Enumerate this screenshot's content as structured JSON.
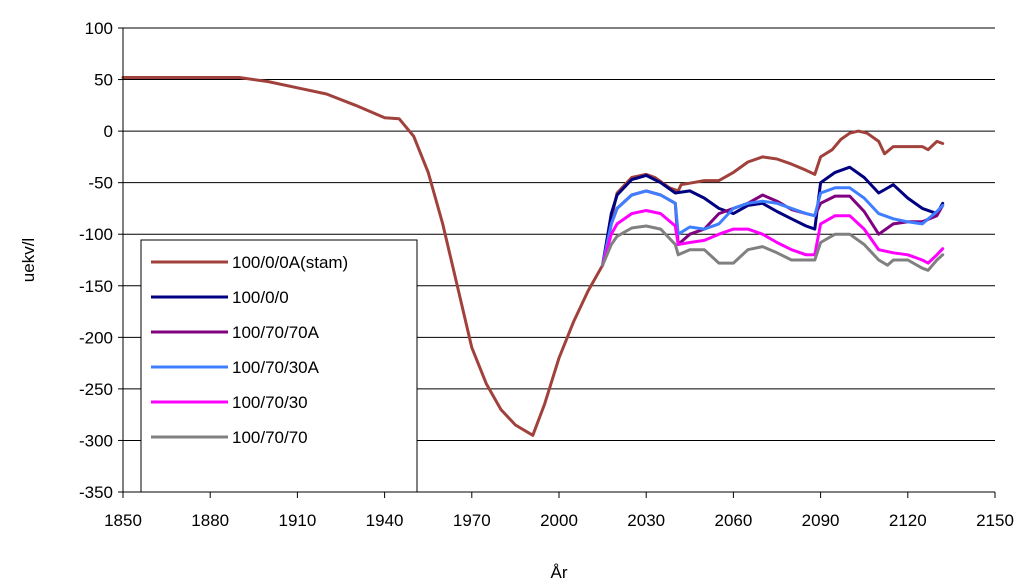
{
  "chart_data": {
    "type": "line",
    "title": "",
    "xlabel": "År",
    "ylabel": "uekv/l",
    "xlim": [
      1850,
      2150
    ],
    "ylim": [
      -350,
      100
    ],
    "x_ticks": [
      1850,
      1880,
      1910,
      1940,
      1970,
      2000,
      2030,
      2060,
      2090,
      2120,
      2150
    ],
    "y_ticks": [
      100,
      50,
      0,
      -50,
      -100,
      -150,
      -200,
      -250,
      -300,
      -350
    ],
    "grid": "horizontal",
    "legend": "bottom-left",
    "series": [
      {
        "name": "100/0/0A(stam)",
        "color": "#A0413B",
        "points": [
          [
            1850,
            52
          ],
          [
            1890,
            52
          ],
          [
            1900,
            48
          ],
          [
            1910,
            42
          ],
          [
            1920,
            36
          ],
          [
            1930,
            25
          ],
          [
            1940,
            13
          ],
          [
            1945,
            12
          ],
          [
            1950,
            -5
          ],
          [
            1955,
            -40
          ],
          [
            1960,
            -90
          ],
          [
            1965,
            -150
          ],
          [
            1970,
            -210
          ],
          [
            1975,
            -245
          ],
          [
            1980,
            -270
          ],
          [
            1985,
            -285
          ],
          [
            1991,
            -295
          ],
          [
            1995,
            -265
          ],
          [
            2000,
            -220
          ],
          [
            2005,
            -185
          ],
          [
            2010,
            -155
          ],
          [
            2015,
            -130
          ],
          [
            2018,
            -85
          ],
          [
            2020,
            -60
          ],
          [
            2025,
            -45
          ],
          [
            2030,
            -42
          ],
          [
            2033,
            -45
          ],
          [
            2038,
            -55
          ],
          [
            2041,
            -58
          ],
          [
            2042,
            -52
          ],
          [
            2046,
            -50
          ],
          [
            2050,
            -48
          ],
          [
            2055,
            -48
          ],
          [
            2060,
            -40
          ],
          [
            2065,
            -30
          ],
          [
            2070,
            -25
          ],
          [
            2075,
            -27
          ],
          [
            2080,
            -32
          ],
          [
            2085,
            -38
          ],
          [
            2088,
            -42
          ],
          [
            2090,
            -25
          ],
          [
            2094,
            -18
          ],
          [
            2097,
            -8
          ],
          [
            2100,
            -2
          ],
          [
            2103,
            0
          ],
          [
            2106,
            -2
          ],
          [
            2110,
            -10
          ],
          [
            2112,
            -22
          ],
          [
            2115,
            -15
          ],
          [
            2120,
            -15
          ],
          [
            2125,
            -15
          ],
          [
            2127,
            -18
          ],
          [
            2130,
            -10
          ],
          [
            2132,
            -12
          ]
        ]
      },
      {
        "name": "100/0/0",
        "color": "#000080",
        "points": [
          [
            2015,
            -130
          ],
          [
            2018,
            -80
          ],
          [
            2020,
            -62
          ],
          [
            2025,
            -47
          ],
          [
            2030,
            -43
          ],
          [
            2035,
            -50
          ],
          [
            2040,
            -60
          ],
          [
            2045,
            -58
          ],
          [
            2050,
            -65
          ],
          [
            2055,
            -75
          ],
          [
            2060,
            -80
          ],
          [
            2065,
            -72
          ],
          [
            2070,
            -70
          ],
          [
            2075,
            -78
          ],
          [
            2080,
            -85
          ],
          [
            2085,
            -92
          ],
          [
            2088,
            -95
          ],
          [
            2090,
            -50
          ],
          [
            2095,
            -40
          ],
          [
            2100,
            -35
          ],
          [
            2105,
            -45
          ],
          [
            2110,
            -60
          ],
          [
            2115,
            -52
          ],
          [
            2120,
            -65
          ],
          [
            2125,
            -75
          ],
          [
            2130,
            -80
          ],
          [
            2132,
            -70
          ]
        ]
      },
      {
        "name": "100/70/70A",
        "color": "#800080",
        "points": [
          [
            2015,
            -130
          ],
          [
            2018,
            -90
          ],
          [
            2020,
            -75
          ],
          [
            2025,
            -62
          ],
          [
            2030,
            -58
          ],
          [
            2035,
            -62
          ],
          [
            2040,
            -70
          ],
          [
            2041,
            -110
          ],
          [
            2045,
            -100
          ],
          [
            2050,
            -95
          ],
          [
            2055,
            -80
          ],
          [
            2060,
            -75
          ],
          [
            2065,
            -70
          ],
          [
            2070,
            -62
          ],
          [
            2075,
            -68
          ],
          [
            2080,
            -76
          ],
          [
            2085,
            -80
          ],
          [
            2088,
            -82
          ],
          [
            2090,
            -70
          ],
          [
            2095,
            -63
          ],
          [
            2100,
            -63
          ],
          [
            2105,
            -78
          ],
          [
            2110,
            -100
          ],
          [
            2115,
            -90
          ],
          [
            2120,
            -88
          ],
          [
            2125,
            -88
          ],
          [
            2130,
            -82
          ],
          [
            2132,
            -72
          ]
        ]
      },
      {
        "name": "100/70/30A",
        "color": "#3F7FFF",
        "points": [
          [
            2015,
            -130
          ],
          [
            2018,
            -90
          ],
          [
            2020,
            -75
          ],
          [
            2025,
            -62
          ],
          [
            2030,
            -58
          ],
          [
            2035,
            -62
          ],
          [
            2040,
            -70
          ],
          [
            2041,
            -100
          ],
          [
            2045,
            -93
          ],
          [
            2050,
            -95
          ],
          [
            2055,
            -90
          ],
          [
            2060,
            -75
          ],
          [
            2065,
            -70
          ],
          [
            2070,
            -68
          ],
          [
            2075,
            -70
          ],
          [
            2080,
            -75
          ],
          [
            2085,
            -80
          ],
          [
            2088,
            -82
          ],
          [
            2090,
            -60
          ],
          [
            2095,
            -55
          ],
          [
            2100,
            -55
          ],
          [
            2105,
            -65
          ],
          [
            2110,
            -80
          ],
          [
            2115,
            -85
          ],
          [
            2120,
            -88
          ],
          [
            2125,
            -90
          ],
          [
            2130,
            -78
          ],
          [
            2132,
            -72
          ]
        ]
      },
      {
        "name": "100/70/30",
        "color": "#FF00FF",
        "points": [
          [
            2015,
            -130
          ],
          [
            2018,
            -100
          ],
          [
            2020,
            -90
          ],
          [
            2025,
            -80
          ],
          [
            2030,
            -77
          ],
          [
            2035,
            -80
          ],
          [
            2040,
            -92
          ],
          [
            2041,
            -110
          ],
          [
            2045,
            -108
          ],
          [
            2050,
            -106
          ],
          [
            2055,
            -100
          ],
          [
            2060,
            -95
          ],
          [
            2065,
            -95
          ],
          [
            2070,
            -100
          ],
          [
            2075,
            -108
          ],
          [
            2080,
            -115
          ],
          [
            2085,
            -120
          ],
          [
            2088,
            -120
          ],
          [
            2090,
            -90
          ],
          [
            2095,
            -82
          ],
          [
            2100,
            -82
          ],
          [
            2105,
            -95
          ],
          [
            2110,
            -115
          ],
          [
            2115,
            -118
          ],
          [
            2120,
            -120
          ],
          [
            2125,
            -125
          ],
          [
            2127,
            -128
          ],
          [
            2130,
            -120
          ],
          [
            2132,
            -114
          ]
        ]
      },
      {
        "name": "100/70/70",
        "color": "#808080",
        "points": [
          [
            2015,
            -130
          ],
          [
            2018,
            -110
          ],
          [
            2020,
            -102
          ],
          [
            2025,
            -94
          ],
          [
            2030,
            -92
          ],
          [
            2035,
            -95
          ],
          [
            2040,
            -110
          ],
          [
            2041,
            -120
          ],
          [
            2045,
            -115
          ],
          [
            2050,
            -115
          ],
          [
            2055,
            -128
          ],
          [
            2060,
            -128
          ],
          [
            2065,
            -115
          ],
          [
            2070,
            -112
          ],
          [
            2075,
            -118
          ],
          [
            2080,
            -125
          ],
          [
            2085,
            -125
          ],
          [
            2088,
            -125
          ],
          [
            2090,
            -108
          ],
          [
            2095,
            -100
          ],
          [
            2100,
            -100
          ],
          [
            2105,
            -110
          ],
          [
            2110,
            -125
          ],
          [
            2113,
            -130
          ],
          [
            2115,
            -125
          ],
          [
            2120,
            -125
          ],
          [
            2125,
            -133
          ],
          [
            2127,
            -135
          ],
          [
            2130,
            -125
          ],
          [
            2132,
            -120
          ]
        ]
      }
    ]
  }
}
